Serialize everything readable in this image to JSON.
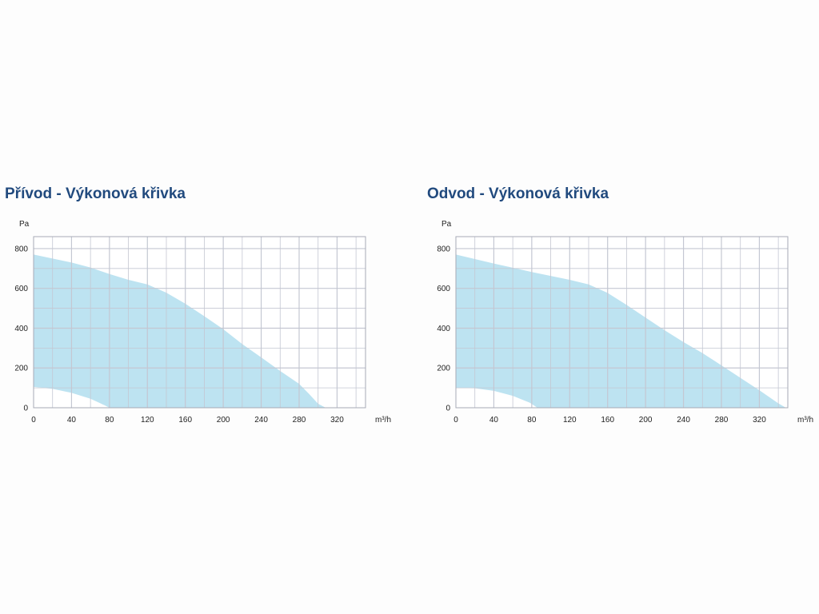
{
  "chart_data": [
    {
      "type": "area",
      "title": "Přívod - Výkonová křivka",
      "xlabel": "m³/h",
      "ylabel": "Pa",
      "xlim": [
        0,
        350
      ],
      "ylim": [
        0,
        860
      ],
      "xticks": [
        0,
        40,
        80,
        120,
        160,
        200,
        240,
        280,
        320
      ],
      "yticks": [
        0,
        200,
        400,
        600,
        800
      ],
      "grid": true,
      "colors": {
        "fill": "#bde3f1",
        "grid": "#c4c7d2",
        "frame": "#a7aab6",
        "title": "#214a7e"
      },
      "upper_curve": [
        {
          "x": 0,
          "y": 770
        },
        {
          "x": 20,
          "y": 750
        },
        {
          "x": 40,
          "y": 730
        },
        {
          "x": 60,
          "y": 705
        },
        {
          "x": 80,
          "y": 672
        },
        {
          "x": 100,
          "y": 643
        },
        {
          "x": 120,
          "y": 620
        },
        {
          "x": 140,
          "y": 578
        },
        {
          "x": 160,
          "y": 523
        },
        {
          "x": 180,
          "y": 460
        },
        {
          "x": 200,
          "y": 395
        },
        {
          "x": 220,
          "y": 320
        },
        {
          "x": 240,
          "y": 253
        },
        {
          "x": 260,
          "y": 185
        },
        {
          "x": 280,
          "y": 120
        },
        {
          "x": 290,
          "y": 72
        },
        {
          "x": 300,
          "y": 20
        },
        {
          "x": 308,
          "y": 0
        }
      ],
      "lower_curve": [
        {
          "x": 0,
          "y": 105
        },
        {
          "x": 20,
          "y": 95
        },
        {
          "x": 40,
          "y": 75
        },
        {
          "x": 60,
          "y": 45
        },
        {
          "x": 75,
          "y": 12
        },
        {
          "x": 80,
          "y": 0
        }
      ]
    },
    {
      "type": "area",
      "title": "Odvod - Výkonová křivka",
      "xlabel": "m³/h",
      "ylabel": "Pa",
      "xlim": [
        0,
        350
      ],
      "ylim": [
        0,
        860
      ],
      "xticks": [
        0,
        40,
        80,
        120,
        160,
        200,
        240,
        280,
        320
      ],
      "yticks": [
        0,
        200,
        400,
        600,
        800
      ],
      "grid": true,
      "colors": {
        "fill": "#bde3f1",
        "grid": "#c4c7d2",
        "frame": "#a7aab6",
        "title": "#214a7e"
      },
      "upper_curve": [
        {
          "x": 0,
          "y": 770
        },
        {
          "x": 40,
          "y": 725
        },
        {
          "x": 80,
          "y": 682
        },
        {
          "x": 120,
          "y": 643
        },
        {
          "x": 140,
          "y": 620
        },
        {
          "x": 160,
          "y": 577
        },
        {
          "x": 180,
          "y": 517
        },
        {
          "x": 200,
          "y": 453
        },
        {
          "x": 220,
          "y": 390
        },
        {
          "x": 240,
          "y": 330
        },
        {
          "x": 260,
          "y": 275
        },
        {
          "x": 280,
          "y": 213
        },
        {
          "x": 300,
          "y": 150
        },
        {
          "x": 320,
          "y": 88
        },
        {
          "x": 340,
          "y": 22
        },
        {
          "x": 348,
          "y": 0
        }
      ],
      "lower_curve": [
        {
          "x": 0,
          "y": 100
        },
        {
          "x": 20,
          "y": 98
        },
        {
          "x": 40,
          "y": 85
        },
        {
          "x": 60,
          "y": 60
        },
        {
          "x": 78,
          "y": 25
        },
        {
          "x": 86,
          "y": 0
        }
      ]
    }
  ]
}
